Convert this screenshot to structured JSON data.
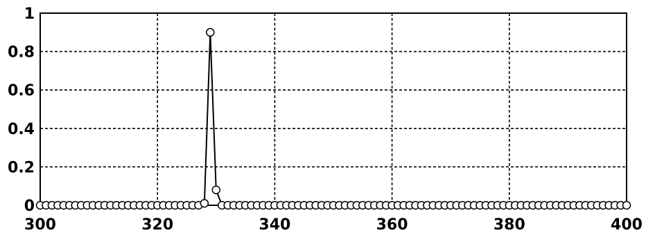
{
  "chart_data": {
    "type": "line",
    "markers": "circle",
    "grid": true,
    "grid_style": "dashed",
    "xlim": [
      300,
      400
    ],
    "ylim": [
      0,
      1
    ],
    "xticks": [
      "300",
      "320",
      "340",
      "360",
      "380",
      "400"
    ],
    "yticks": [
      "0",
      "0.2",
      "0.4",
      "0.6",
      "0.8",
      "1"
    ],
    "series": [
      {
        "x": [
          300,
          301,
          302,
          303,
          304,
          305,
          306,
          307,
          308,
          309,
          310,
          311,
          312,
          313,
          314,
          315,
          316,
          317,
          318,
          319,
          320,
          321,
          322,
          323,
          324,
          325,
          326,
          327,
          328,
          329,
          330,
          331,
          332,
          333,
          334,
          335,
          336,
          337,
          338,
          339,
          340,
          341,
          342,
          343,
          344,
          345,
          346,
          347,
          348,
          349,
          350,
          351,
          352,
          353,
          354,
          355,
          356,
          357,
          358,
          359,
          360,
          361,
          362,
          363,
          364,
          365,
          366,
          367,
          368,
          369,
          370,
          371,
          372,
          373,
          374,
          375,
          376,
          377,
          378,
          379,
          380,
          381,
          382,
          383,
          384,
          385,
          386,
          387,
          388,
          389,
          390,
          391,
          392,
          393,
          394,
          395,
          396,
          397,
          398,
          399,
          400
        ],
        "y": [
          0,
          0,
          0,
          0,
          0,
          0,
          0,
          0,
          0,
          0,
          0,
          0,
          0,
          0,
          0,
          0,
          0,
          0,
          0,
          0,
          0,
          0,
          0,
          0,
          0,
          0,
          0,
          0,
          0.01,
          0.9,
          0.08,
          0,
          0,
          0,
          0,
          0,
          0,
          0,
          0,
          0,
          0,
          0,
          0,
          0,
          0,
          0,
          0,
          0,
          0,
          0,
          0,
          0,
          0,
          0,
          0,
          0,
          0,
          0,
          0,
          0,
          0,
          0,
          0,
          0,
          0,
          0,
          0,
          0,
          0,
          0,
          0,
          0,
          0,
          0,
          0,
          0,
          0,
          0,
          0,
          0,
          0,
          0,
          0,
          0,
          0,
          0,
          0,
          0,
          0,
          0,
          0,
          0,
          0,
          0,
          0,
          0,
          0,
          0,
          0,
          0,
          0
        ]
      }
    ]
  }
}
